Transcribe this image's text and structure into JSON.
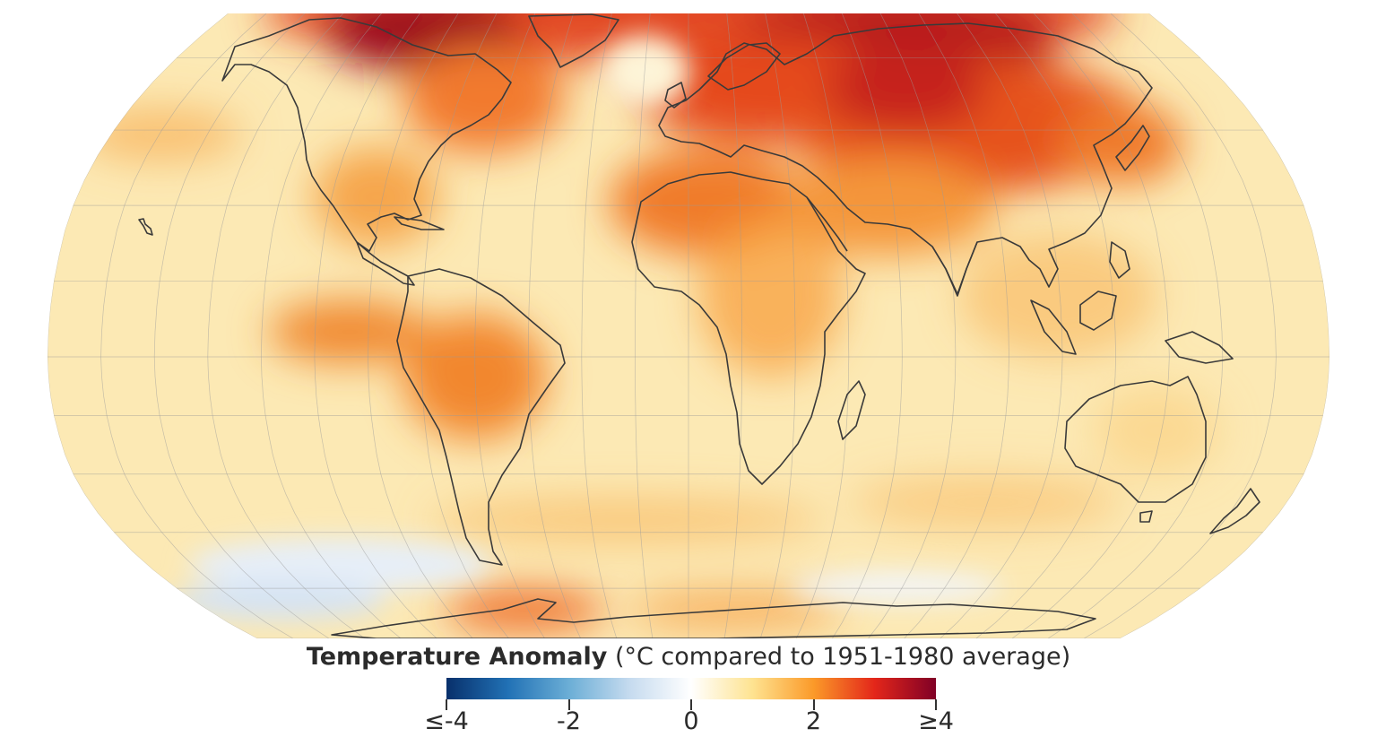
{
  "map": {
    "projection": "robinson",
    "colors": {
      "ocean_base": "#fce9b4",
      "coastline": "#3a3a3a",
      "graticule": "#9a9a9a",
      "hot_arctic": "#a8111e",
      "hot_land": "#f08a2e",
      "cold": "#dde8f4"
    }
  },
  "legend": {
    "title_bold": "Temperature Anomaly",
    "title_rest": "(°C compared to 1951-1980 average)",
    "min": -4,
    "max": 4,
    "stops": [
      {
        "value": -4,
        "color": "#08306b"
      },
      {
        "value": -3,
        "color": "#2171b5"
      },
      {
        "value": -2,
        "color": "#6baed6"
      },
      {
        "value": -1,
        "color": "#c6dbef"
      },
      {
        "value": 0,
        "color": "#ffffff"
      },
      {
        "value": 1,
        "color": "#fee391"
      },
      {
        "value": 2,
        "color": "#fb9a29"
      },
      {
        "value": 3,
        "color": "#e3261a"
      },
      {
        "value": 4,
        "color": "#800026"
      }
    ],
    "ticks": [
      {
        "value": -4,
        "label": "≤-4"
      },
      {
        "value": -2,
        "label": "-2"
      },
      {
        "value": 0,
        "label": "0"
      },
      {
        "value": 2,
        "label": "2"
      },
      {
        "value": 4,
        "label": "≥4"
      }
    ]
  }
}
